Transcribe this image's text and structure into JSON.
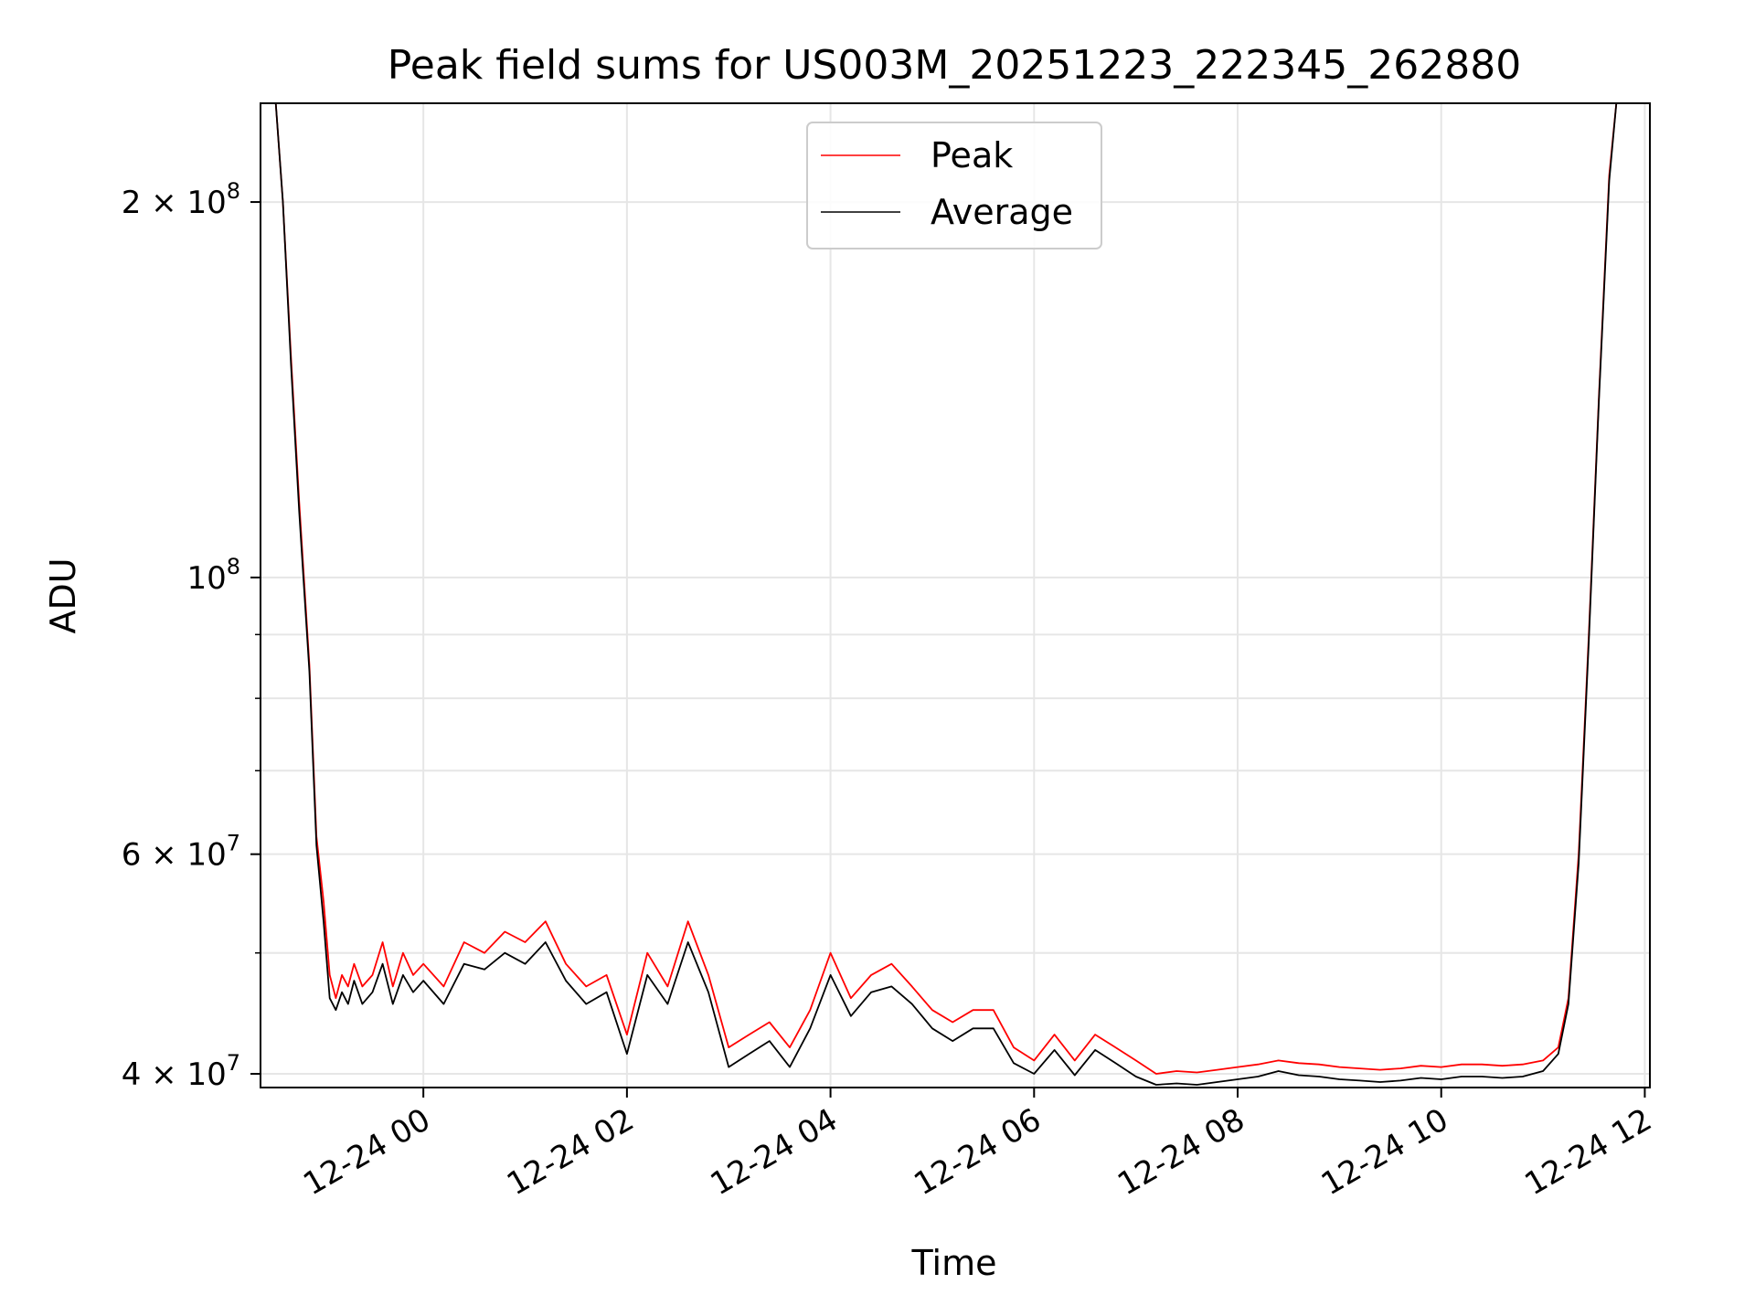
{
  "chart_data": {
    "type": "line",
    "title": "Peak field sums for US003M_20251223_222345_262880",
    "xlabel": "Time",
    "ylabel": "ADU",
    "yscale": "log",
    "ylim": [
      39000000,
      240000000
    ],
    "xlim_hours": [
      -1.6,
      12.05
    ],
    "x_unit": "hours since 2025-12-24 00:00",
    "grid": true,
    "legend_position": "top-center",
    "x_ticks": [
      {
        "value": 0,
        "label": "12-24 00"
      },
      {
        "value": 2,
        "label": "12-24 02"
      },
      {
        "value": 4,
        "label": "12-24 04"
      },
      {
        "value": 6,
        "label": "12-24 06"
      },
      {
        "value": 8,
        "label": "12-24 08"
      },
      {
        "value": 10,
        "label": "12-24 10"
      },
      {
        "value": 12,
        "label": "12-24 12"
      }
    ],
    "y_ticks": [
      {
        "value": 40000000,
        "base": "4",
        "times": "×",
        "mant": "10",
        "exp": "7"
      },
      {
        "value": 60000000,
        "base": "6",
        "times": "×",
        "mant": "10",
        "exp": "7"
      },
      {
        "value": 100000000,
        "base": "",
        "times": "",
        "mant": "10",
        "exp": "8"
      },
      {
        "value": 200000000,
        "base": "2",
        "times": "×",
        "mant": "10",
        "exp": "8"
      }
    ],
    "y_minor_ticks": [
      50000000,
      70000000,
      80000000,
      90000000
    ],
    "series": [
      {
        "name": "Peak",
        "color": "#ff0000",
        "x": [
          -1.6,
          -1.45,
          -1.38,
          -1.3,
          -1.22,
          -1.12,
          -1.05,
          -0.98,
          -0.92,
          -0.86,
          -0.8,
          -0.74,
          -0.68,
          -0.6,
          -0.5,
          -0.4,
          -0.3,
          -0.2,
          -0.1,
          0.0,
          0.2,
          0.4,
          0.6,
          0.8,
          1.0,
          1.2,
          1.4,
          1.6,
          1.8,
          2.0,
          2.2,
          2.4,
          2.6,
          2.8,
          3.0,
          3.2,
          3.4,
          3.6,
          3.8,
          4.0,
          4.2,
          4.4,
          4.6,
          4.8,
          5.0,
          5.2,
          5.4,
          5.6,
          5.8,
          6.0,
          6.2,
          6.4,
          6.6,
          6.8,
          7.0,
          7.2,
          7.4,
          7.6,
          7.8,
          8.0,
          8.2,
          8.4,
          8.6,
          8.8,
          9.0,
          9.2,
          9.4,
          9.6,
          9.8,
          10.0,
          10.2,
          10.4,
          10.6,
          10.8,
          11.0,
          11.15,
          11.25,
          11.35,
          11.45,
          11.55,
          11.65,
          11.72,
          11.8
        ],
        "values": [
          240000000,
          240000000,
          200000000,
          150000000,
          115000000,
          85000000,
          62000000,
          55000000,
          48000000,
          46000000,
          48000000,
          47000000,
          49000000,
          47000000,
          48000000,
          51000000,
          47000000,
          50000000,
          48000000,
          49000000,
          47000000,
          51000000,
          50000000,
          52000000,
          51000000,
          53000000,
          49000000,
          47000000,
          48000000,
          43000000,
          50000000,
          47000000,
          53000000,
          48000000,
          42000000,
          43000000,
          44000000,
          42000000,
          45000000,
          50000000,
          46000000,
          48000000,
          49000000,
          47000000,
          45000000,
          44000000,
          45000000,
          45000000,
          42000000,
          41000000,
          43000000,
          41000000,
          43000000,
          42000000,
          41000000,
          40000000,
          40200000,
          40100000,
          40300000,
          40500000,
          40700000,
          41000000,
          40800000,
          40700000,
          40500000,
          40400000,
          40300000,
          40400000,
          40600000,
          40500000,
          40700000,
          40700000,
          40600000,
          40700000,
          41000000,
          42000000,
          46000000,
          60000000,
          90000000,
          140000000,
          210000000,
          240000000,
          240000000
        ]
      },
      {
        "name": "Average",
        "color": "#000000",
        "x": [
          -1.6,
          -1.45,
          -1.38,
          -1.3,
          -1.22,
          -1.12,
          -1.05,
          -0.98,
          -0.92,
          -0.86,
          -0.8,
          -0.74,
          -0.68,
          -0.6,
          -0.5,
          -0.4,
          -0.3,
          -0.2,
          -0.1,
          0.0,
          0.2,
          0.4,
          0.6,
          0.8,
          1.0,
          1.2,
          1.4,
          1.6,
          1.8,
          2.0,
          2.2,
          2.4,
          2.6,
          2.8,
          3.0,
          3.2,
          3.4,
          3.6,
          3.8,
          4.0,
          4.2,
          4.4,
          4.6,
          4.8,
          5.0,
          5.2,
          5.4,
          5.6,
          5.8,
          6.0,
          6.2,
          6.4,
          6.6,
          6.8,
          7.0,
          7.2,
          7.4,
          7.6,
          7.8,
          8.0,
          8.2,
          8.4,
          8.6,
          8.8,
          9.0,
          9.2,
          9.4,
          9.6,
          9.8,
          10.0,
          10.2,
          10.4,
          10.6,
          10.8,
          11.0,
          11.15,
          11.25,
          11.35,
          11.45,
          11.55,
          11.65,
          11.72,
          11.8
        ],
        "values": [
          240000000,
          240000000,
          200000000,
          148000000,
          113000000,
          84000000,
          61000000,
          53000000,
          46000000,
          45000000,
          46500000,
          45500000,
          47500000,
          45500000,
          46500000,
          49000000,
          45500000,
          48000000,
          46500000,
          47500000,
          45500000,
          49000000,
          48500000,
          50000000,
          49000000,
          51000000,
          47500000,
          45500000,
          46500000,
          41500000,
          48000000,
          45500000,
          51000000,
          46500000,
          40500000,
          41500000,
          42500000,
          40500000,
          43500000,
          48000000,
          44500000,
          46500000,
          47000000,
          45500000,
          43500000,
          42500000,
          43500000,
          43500000,
          40800000,
          40000000,
          41800000,
          39900000,
          41800000,
          40800000,
          39800000,
          39200000,
          39300000,
          39200000,
          39400000,
          39600000,
          39800000,
          40200000,
          39900000,
          39800000,
          39600000,
          39500000,
          39400000,
          39500000,
          39700000,
          39600000,
          39800000,
          39800000,
          39700000,
          39800000,
          40200000,
          41500000,
          45500000,
          59000000,
          89000000,
          139000000,
          208000000,
          240000000,
          240000000
        ]
      }
    ]
  }
}
